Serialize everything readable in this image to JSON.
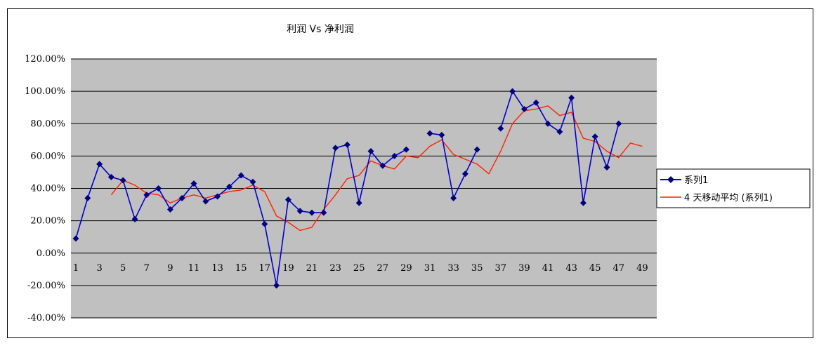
{
  "chart_data": {
    "type": "line",
    "title": "利润 Vs 净利润",
    "xlabel": "",
    "ylabel": "",
    "ylim": [
      -0.4,
      1.2
    ],
    "y_ticks": [
      -0.4,
      -0.2,
      0,
      0.2,
      0.4,
      0.6,
      0.8,
      1.0,
      1.2
    ],
    "y_tick_labels": [
      "-40.00%",
      "-20.00%",
      "0.00%",
      "20.00%",
      "40.00%",
      "60.00%",
      "80.00%",
      "100.00%",
      "120.00%"
    ],
    "x": [
      1,
      2,
      3,
      4,
      5,
      6,
      7,
      8,
      9,
      10,
      11,
      12,
      13,
      14,
      15,
      16,
      17,
      18,
      19,
      20,
      21,
      22,
      23,
      24,
      25,
      26,
      27,
      28,
      29,
      30,
      31,
      32,
      33,
      34,
      35,
      36,
      37,
      38,
      39,
      40,
      41,
      42,
      43,
      44,
      45,
      46,
      47,
      48,
      49
    ],
    "x_tick_labels": [
      "1",
      "3",
      "5",
      "7",
      "9",
      "11",
      "13",
      "15",
      "17",
      "19",
      "21",
      "23",
      "25",
      "27",
      "29",
      "31",
      "33",
      "35",
      "37",
      "39",
      "41",
      "43",
      "45",
      "47",
      "49"
    ],
    "x_tick_values": [
      1,
      3,
      5,
      7,
      9,
      11,
      13,
      15,
      17,
      19,
      21,
      23,
      25,
      27,
      29,
      31,
      33,
      35,
      37,
      39,
      41,
      43,
      45,
      47,
      49
    ],
    "grid": true,
    "plot_background": "#c0c0c0",
    "legend_position": "right",
    "series": [
      {
        "name": "系列1",
        "color": "#0000cc",
        "marker": "diamond",
        "values": [
          0.09,
          0.34,
          0.55,
          0.47,
          0.45,
          0.21,
          0.36,
          0.4,
          0.27,
          0.34,
          0.43,
          0.32,
          0.35,
          0.41,
          0.48,
          0.44,
          0.18,
          -0.2,
          0.33,
          0.26,
          0.25,
          0.25,
          0.65,
          0.67,
          0.31,
          0.63,
          0.54,
          0.6,
          0.64,
          null,
          0.74,
          0.73,
          0.34,
          0.49,
          0.64,
          null,
          0.77,
          1.0,
          0.89,
          0.93,
          0.8,
          0.75,
          0.96,
          0.31,
          0.72,
          0.53,
          0.8,
          null,
          null
        ]
      },
      {
        "name": "4 天移动平均 (系列1)",
        "color": "#ff2200",
        "marker": "none",
        "values": [
          null,
          null,
          null,
          0.36,
          0.45,
          0.42,
          0.37,
          0.36,
          0.31,
          0.34,
          0.36,
          0.34,
          0.36,
          0.38,
          0.39,
          0.42,
          0.38,
          0.23,
          0.19,
          0.14,
          0.16,
          0.27,
          0.36,
          0.46,
          0.48,
          0.57,
          0.54,
          0.52,
          0.6,
          0.59,
          0.66,
          0.7,
          0.61,
          0.58,
          0.55,
          0.49,
          0.63,
          0.8,
          0.88,
          0.89,
          0.91,
          0.85,
          0.87,
          0.71,
          0.69,
          0.63,
          0.59,
          0.68,
          0.66
        ]
      }
    ]
  }
}
